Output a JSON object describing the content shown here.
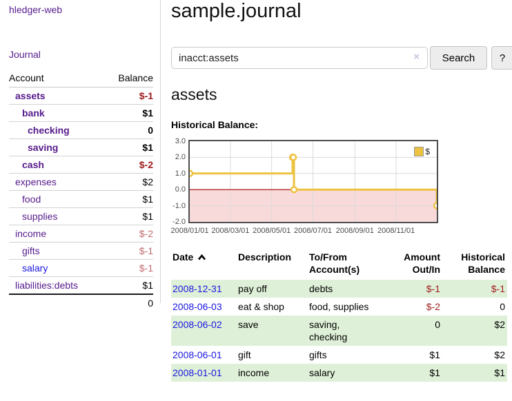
{
  "app": {
    "title": "hledger-web"
  },
  "nav": {
    "journal": "Journal"
  },
  "sidebar": {
    "col_account": "Account",
    "col_balance": "Balance",
    "accounts": [
      {
        "name": "assets",
        "balance": "$-1"
      },
      {
        "name": "bank",
        "balance": "$1"
      },
      {
        "name": "checking",
        "balance": "0"
      },
      {
        "name": "saving",
        "balance": "$1"
      },
      {
        "name": "cash",
        "balance": "$-2"
      },
      {
        "name": "expenses",
        "balance": "$2"
      },
      {
        "name": "food",
        "balance": "$1"
      },
      {
        "name": "supplies",
        "balance": "$1"
      },
      {
        "name": "income",
        "balance": "$-2"
      },
      {
        "name": "gifts",
        "balance": "$-1"
      },
      {
        "name": "salary",
        "balance": "$-1"
      },
      {
        "name": "liabilities:debts",
        "balance": "$1"
      }
    ],
    "total": "0"
  },
  "main": {
    "title": "sample.journal",
    "search": {
      "value": "inacct:assets",
      "clear": "×",
      "search_button": "Search",
      "help_button": "?"
    },
    "account_heading": "assets",
    "chart_label": "Historical Balance:"
  },
  "register": {
    "headers": {
      "date": "Date",
      "description": "Description",
      "tofrom": "To/From Account(s)",
      "amount": "Amount Out/In",
      "balance": "Historical Balance"
    },
    "rows": [
      {
        "date": "2008-12-31",
        "description": "pay off",
        "tofrom": "debts",
        "amount": "$-1",
        "balance": "$-1"
      },
      {
        "date": "2008-06-03",
        "description": "eat & shop",
        "tofrom": "food, supplies",
        "amount": "$-2",
        "balance": "0"
      },
      {
        "date": "2008-06-02",
        "description": "save",
        "tofrom": "saving, checking",
        "amount": "0",
        "balance": "$2"
      },
      {
        "date": "2008-06-01",
        "description": "gift",
        "tofrom": "gifts",
        "amount": "$1",
        "balance": "$2"
      },
      {
        "date": "2008-01-01",
        "description": "income",
        "tofrom": "salary",
        "amount": "$1",
        "balance": "$1"
      }
    ]
  },
  "chart_data": {
    "type": "line",
    "title": "Historical Balance",
    "steps": true,
    "series": [
      {
        "name": "$",
        "color": "#edc240",
        "points": [
          [
            "2008-01-01",
            1
          ],
          [
            "2008-06-01",
            2
          ],
          [
            "2008-06-02",
            2
          ],
          [
            "2008-06-03",
            0
          ],
          [
            "2008-12-31",
            -1
          ]
        ]
      }
    ],
    "xlim": [
      "2008-01-01",
      "2008-12-31"
    ],
    "ylim": [
      -2,
      3
    ],
    "yticks": [
      3.0,
      2.0,
      1.0,
      0.0,
      -1.0,
      -2.0
    ],
    "xticks": [
      "2008/01/01",
      "2008/03/01",
      "2008/05/01",
      "2008/07/01",
      "2008/09/01",
      "2008/11/01"
    ],
    "legend": {
      "label": "$",
      "position": "top-right"
    },
    "grid_color": "#dadada",
    "negative_region_color": "#f9dada",
    "zero_line_color": "#a40000",
    "border_color": "#4d4d4d"
  },
  "colors": {
    "link_visited": "#551A8B",
    "link": "#1a16e0",
    "negative_strong": "#9e1b1b",
    "negative_weak": "#c06b6e",
    "row_highlight": "#dff0d8",
    "series": "#edc240"
  }
}
